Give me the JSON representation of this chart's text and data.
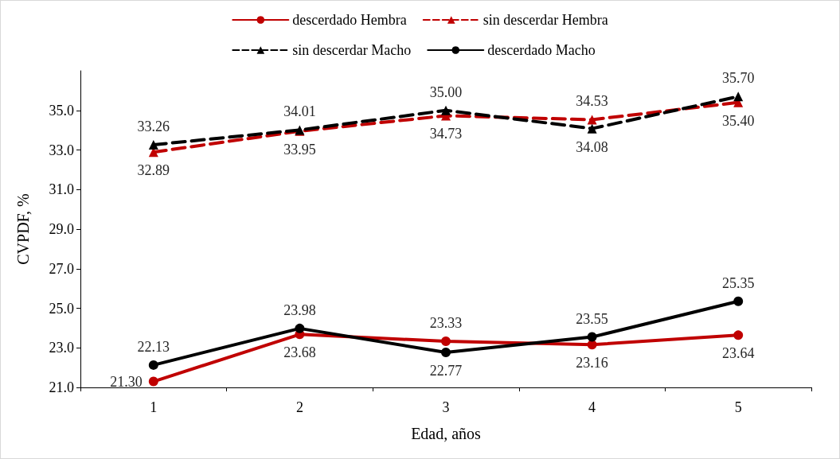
{
  "chart_data": {
    "type": "line",
    "xlabel": "Edad, años",
    "ylabel": "CVPDF, %",
    "categories": [
      "1",
      "2",
      "3",
      "4",
      "5"
    ],
    "series": [
      {
        "name": "descerdado Hembra",
        "color": "#c00000",
        "marker": "circle",
        "line_style": "solid",
        "values": [
          21.3,
          23.68,
          23.33,
          23.16,
          23.64
        ],
        "value_labels": [
          "21.30",
          "23.68",
          "23.33",
          "23.16",
          "23.64"
        ]
      },
      {
        "name": "sin descerdar Hembra",
        "color": "#c00000",
        "marker": "triangle",
        "line_style": "dashed",
        "values": [
          32.89,
          33.95,
          34.73,
          34.53,
          35.4
        ],
        "value_labels": [
          "32.89",
          "33.95",
          "34.73",
          "34.53",
          "35.40"
        ]
      },
      {
        "name": "sin descerdar Macho",
        "color": "#000000",
        "marker": "triangle",
        "line_style": "dashed",
        "values": [
          33.26,
          34.01,
          35.0,
          34.08,
          35.7
        ],
        "value_labels": [
          "33.26",
          "34.01",
          "35.00",
          "34.08",
          "35.70"
        ]
      },
      {
        "name": "descerdado Macho",
        "color": "#000000",
        "marker": "circle",
        "line_style": "solid",
        "values": [
          22.13,
          23.98,
          22.77,
          23.55,
          25.35
        ],
        "value_labels": [
          "22.13",
          "23.98",
          "22.77",
          "23.55",
          "25.35"
        ]
      }
    ],
    "ylim": [
      21,
      37
    ],
    "yticks": [
      {
        "value": 21,
        "label": "21.0"
      },
      {
        "value": 23,
        "label": "23.0"
      },
      {
        "value": 25,
        "label": "25.0"
      },
      {
        "value": 27,
        "label": "27.0"
      },
      {
        "value": 29,
        "label": "29.0"
      },
      {
        "value": 31,
        "label": "31.0"
      },
      {
        "value": 33,
        "label": "33.0"
      },
      {
        "value": 35,
        "label": "35.0"
      }
    ],
    "grid": false,
    "legend": "top"
  }
}
